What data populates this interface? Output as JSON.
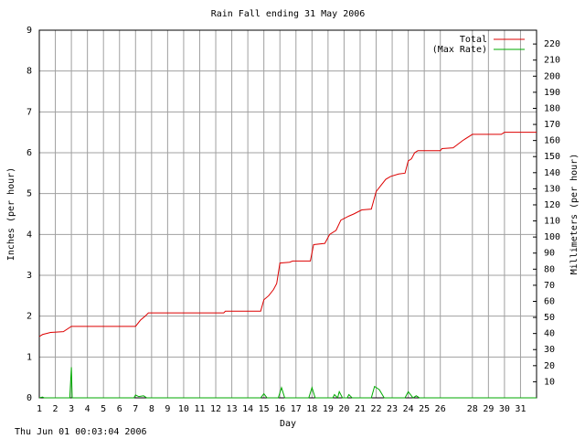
{
  "chart_data": {
    "type": "line",
    "title": "Rain Fall ending 31 May 2006",
    "xlabel": "Day",
    "ylabel": "Inches (per hour)",
    "y2label": "Millimeters (per hour)",
    "footer": "Thu Jun 01 00:03:04 2006",
    "xlim": [
      1,
      32
    ],
    "xticks": [
      1,
      2,
      3,
      4,
      5,
      6,
      7,
      8,
      9,
      10,
      11,
      12,
      13,
      14,
      15,
      16,
      17,
      18,
      19,
      20,
      21,
      22,
      23,
      24,
      25,
      26,
      28,
      29,
      30,
      31
    ],
    "ylim": [
      0,
      9
    ],
    "yticks": [
      0,
      1,
      2,
      3,
      4,
      5,
      6,
      7,
      8,
      9
    ],
    "y2lim": [
      0,
      228.6
    ],
    "y2ticks": [
      10,
      20,
      30,
      40,
      50,
      60,
      70,
      80,
      90,
      100,
      110,
      120,
      130,
      140,
      150,
      160,
      170,
      180,
      190,
      200,
      210,
      220
    ],
    "grid": true,
    "legend": "top-right",
    "series": [
      {
        "name": "Total",
        "color": "#dd0000",
        "x": [
          1,
          1.2,
          1.7,
          2.5,
          3.0,
          7.0,
          7.3,
          7.6,
          7.8,
          12.5,
          12.6,
          14.8,
          15.0,
          15.3,
          15.6,
          15.8,
          16.0,
          16.6,
          16.8,
          17.9,
          18.1,
          18.8,
          19.1,
          19.5,
          19.8,
          20.3,
          20.6,
          21.1,
          21.7,
          22.0,
          22.3,
          22.6,
          22.9,
          23.4,
          23.8,
          24.0,
          24.2,
          24.4,
          24.6,
          26.0,
          26.1,
          26.8,
          27.4,
          28.0,
          29.8,
          30.0,
          32
        ],
        "values": [
          1.5,
          1.55,
          1.6,
          1.62,
          1.75,
          1.75,
          1.9,
          2.0,
          2.08,
          2.08,
          2.12,
          2.12,
          2.4,
          2.5,
          2.65,
          2.8,
          3.3,
          3.32,
          3.35,
          3.35,
          3.75,
          3.78,
          4.0,
          4.1,
          4.35,
          4.45,
          4.5,
          4.6,
          4.62,
          5.05,
          5.2,
          5.35,
          5.42,
          5.48,
          5.5,
          5.8,
          5.85,
          6.0,
          6.05,
          6.05,
          6.1,
          6.12,
          6.3,
          6.45,
          6.45,
          6.5,
          6.5
        ]
      },
      {
        "name": "(Max Rate)",
        "color": "#00aa00",
        "x": [
          1,
          1.2,
          1.3,
          1.4,
          2.9,
          3.0,
          3.05,
          6.9,
          7.0,
          7.2,
          7.5,
          7.7,
          14.8,
          15.0,
          15.2,
          15.9,
          16.1,
          16.3,
          17.8,
          18.0,
          18.2,
          19.3,
          19.4,
          19.6,
          19.7,
          19.9,
          20.2,
          20.3,
          20.5,
          21.7,
          21.9,
          22.2,
          22.5,
          23.8,
          24.0,
          24.3,
          24.5,
          24.7,
          32
        ],
        "values": [
          0,
          0.02,
          0,
          0,
          0,
          0.75,
          0,
          0,
          0.07,
          0.03,
          0.05,
          0,
          0,
          0.1,
          0,
          0,
          0.25,
          0,
          0,
          0.25,
          0,
          0,
          0.08,
          0,
          0.15,
          0,
          0,
          0.08,
          0,
          0,
          0.28,
          0.2,
          0,
          0,
          0.15,
          0,
          0.05,
          0,
          0
        ]
      }
    ]
  }
}
